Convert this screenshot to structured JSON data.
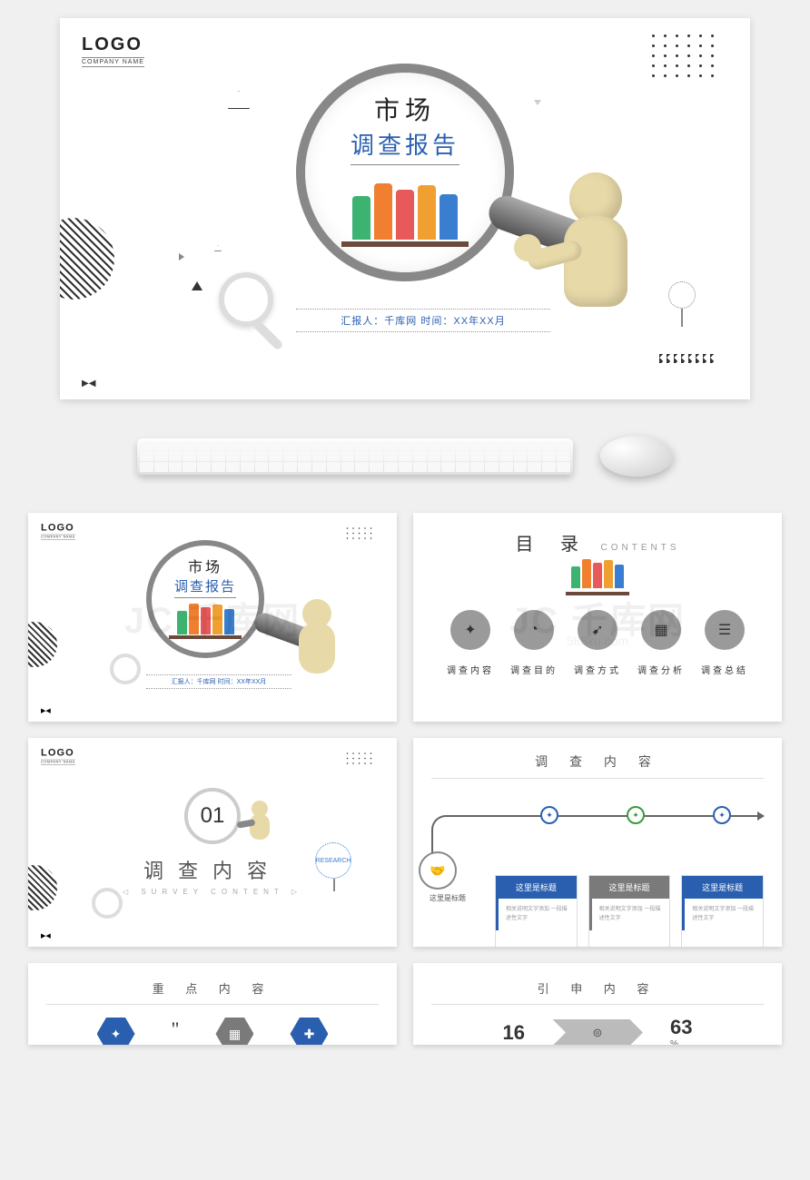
{
  "logo": {
    "text": "LOGO",
    "sub": "COMPANY NAME"
  },
  "main": {
    "title1": "市场",
    "title2": "调查报告",
    "reporter": "汇报人：千库网  时间：XX年XX月",
    "people_colors": [
      "#3cb371",
      "#f08030",
      "#e85a5a",
      "#f0a030",
      "#3a7fcf"
    ]
  },
  "watermark": {
    "big": "JC 千库网",
    "small": "588ku.com"
  },
  "slide2": {
    "title": "目 录",
    "title_en": "CONTENTS",
    "items": [
      {
        "icon": "✦",
        "label": "调查内容"
      },
      {
        "icon": "◔",
        "label": "调查目的"
      },
      {
        "icon": "➹",
        "label": "调查方式"
      },
      {
        "icon": "▦",
        "label": "调查分析"
      },
      {
        "icon": "☰",
        "label": "调查总结"
      }
    ]
  },
  "slide3": {
    "num": "01",
    "title": "调查内容",
    "sub": "SURVEY CONTENT"
  },
  "slide4": {
    "title": "调 查 内 容",
    "start_label": "这里是标题",
    "nodes": [
      {
        "color": "#2a5fb0"
      },
      {
        "color": "#3a9a3a"
      },
      {
        "color": "#2a5fb0"
      }
    ],
    "cards": [
      {
        "head": "这里是标题",
        "body": "相关说明文字添加\n一段描述性文字",
        "color": "#2a5fb0"
      },
      {
        "head": "这里是标题",
        "body": "相关说明文字添加\n一段描述性文字",
        "color": "#7a7a7a"
      },
      {
        "head": "这里是标题",
        "body": "相关说明文字添加\n一段描述性文字",
        "color": "#2a5fb0"
      }
    ]
  },
  "slide5": {
    "title": "重 点 内 容",
    "hex": [
      {
        "color": "#2a5fb0",
        "icon": "✦"
      },
      {
        "color": "#7a7a7a",
        "icon": "▦"
      },
      {
        "color": "#2a5fb0",
        "icon": "✚"
      }
    ]
  },
  "slide6": {
    "title": "引 申 内 容",
    "num1": "16",
    "num2": "63",
    "pct": "%"
  }
}
